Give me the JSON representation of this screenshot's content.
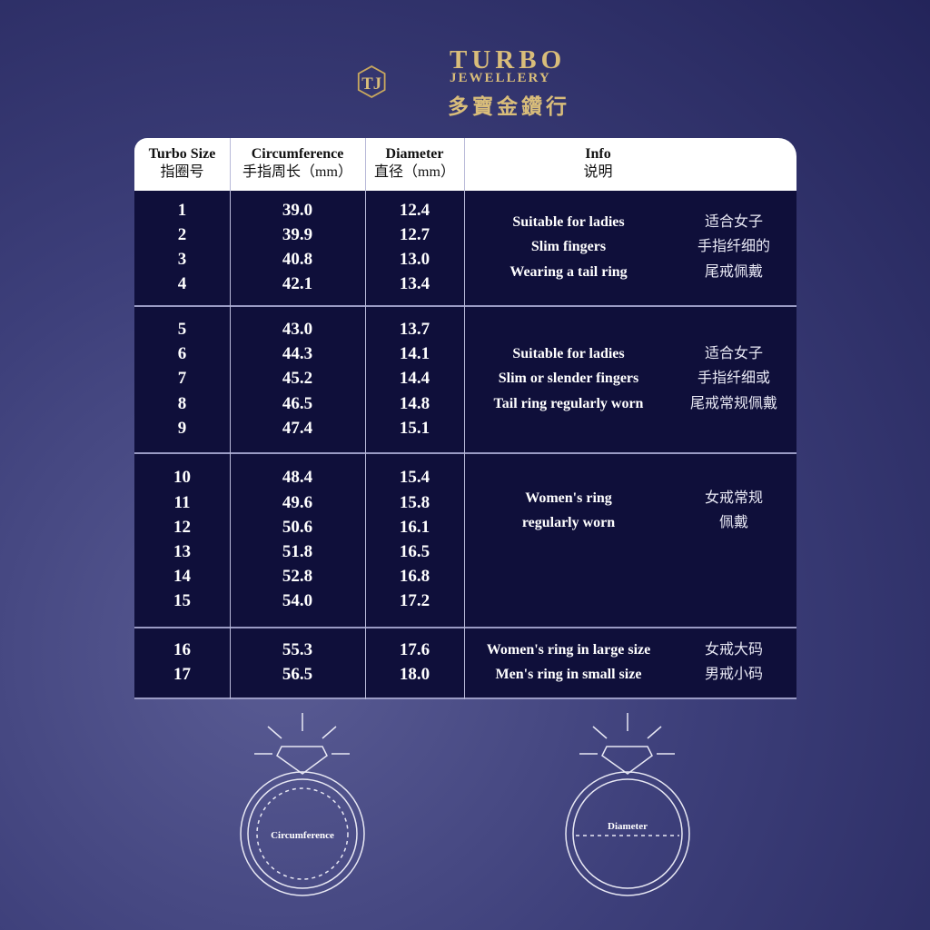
{
  "brand": {
    "name": "TURBO",
    "sub": "JEWELLERY",
    "chinese": "多寶金鑽行",
    "logo_monogram": "TJ",
    "gold": "#d9bd7a"
  },
  "header": {
    "size": {
      "en": "Turbo Size",
      "zh": "指圈号"
    },
    "circ": {
      "en": "Circumference",
      "zh": "手指周长（mm）"
    },
    "diam": {
      "en": "Diameter",
      "zh": "直径（mm）"
    },
    "info": {
      "en": "Info",
      "zh": "说明"
    }
  },
  "groups": [
    {
      "sizes": "1\n2\n3\n4",
      "circ": "39.0\n39.9\n40.8\n42.1",
      "diam": "12.4\n12.7\n13.0\n13.4",
      "info_en": "Suitable for ladies\nSlim fingers\nWearing a tail ring",
      "info_zh": "适合女子\n手指纤细的\n尾戒佩戴"
    },
    {
      "sizes": "5\n6\n7\n8\n9",
      "circ": "43.0\n44.3\n45.2\n46.5\n47.4",
      "diam": "13.7\n14.1\n14.4\n14.8\n15.1",
      "info_en": "Suitable for ladies\nSlim or slender fingers\nTail ring regularly worn",
      "info_zh": "适合女子\n手指纤细或\n尾戒常规佩戴"
    },
    {
      "sizes": "10\n11\n12\n13\n14\n15",
      "circ": "48.4\n49.6\n50.6\n51.8\n52.8\n54.0",
      "diam": "15.4\n15.8\n16.1\n16.5\n16.8\n17.2",
      "info_en": "Women's ring\nregularly worn",
      "info_zh": "女戒常规\n佩戴"
    },
    {
      "sizes": "16\n17",
      "circ": "55.3\n56.5",
      "diam": "17.6\n18.0",
      "info_en": "Women's ring in large size\nMen's ring in small size",
      "info_zh": "女戒大码\n男戒小码"
    }
  ],
  "diagrams": {
    "circumference": "Circumference",
    "diameter": "Diameter"
  },
  "colors": {
    "table_bg": "#0f0f3a",
    "header_bg": "#ffffff"
  }
}
